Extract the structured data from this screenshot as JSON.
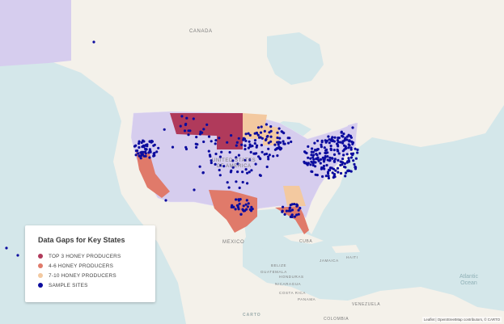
{
  "legend": {
    "title": "Data Gaps for Key States",
    "items": [
      {
        "label": "TOP 3 HONEY PRODUCERS",
        "color": "#b03a5b"
      },
      {
        "label": "4-6 HONEY PRODUCERS",
        "color": "#e07a6a"
      },
      {
        "label": "7-10 HONEY PRODUCERS",
        "color": "#f3c9a0"
      },
      {
        "label": "SAMPLE SITES",
        "color": "#0c0c9e"
      }
    ]
  },
  "map_labels": {
    "canada": "CANADA",
    "usa_line1": "UNITED STATES",
    "usa_line2": "OF AMERICA",
    "mexico": "MEXICO",
    "cuba": "CUBA",
    "haiti": "HAITI",
    "jamaica": "JAMAICA",
    "belize": "BELIZE",
    "guatemala": "GUATEMALA",
    "honduras": "HONDURAS",
    "nicaragua": "NICARAGUA",
    "panama": "PANAMA",
    "costa_rica": "COSTA RICA",
    "venezuela": "VENEZUELA",
    "colombia": "COLOMBIA",
    "atlantic_line1": "Atlantic",
    "atlantic_line2": "Ocean"
  },
  "carto_label": "CARTO",
  "attribution": "Leaflet | OpenStreetMap contributors, © CARTO",
  "colors": {
    "ocean": "#d4e7ea",
    "land": "#f4f1ea",
    "us_base": "#d6cdee",
    "top3": "#b03a5b",
    "top4_6": "#e07a6a",
    "top7_10": "#f3c9a0",
    "sample_site": "#0c0c9e"
  }
}
